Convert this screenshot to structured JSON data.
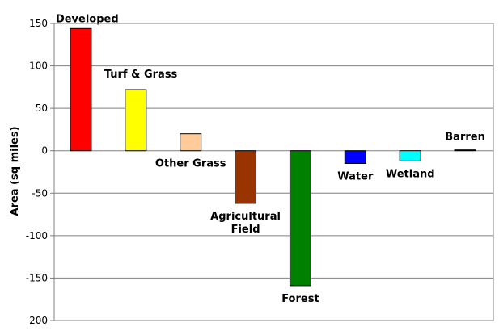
{
  "chart_data": {
    "type": "bar",
    "title": "",
    "xlabel": "",
    "ylabel": "Area (sq miles)",
    "ylim": [
      -200,
      150
    ],
    "yticks": [
      150,
      100,
      50,
      0,
      -50,
      -100,
      -150,
      -200
    ],
    "grid": true,
    "categories": [
      {
        "label": [
          "Developed"
        ],
        "value": 144,
        "color": "#ff0000",
        "label_pos": "above-left"
      },
      {
        "label": [
          "Turf & Grass"
        ],
        "value": 72,
        "color": "#ffff00",
        "label_pos": "above-right"
      },
      {
        "label": [
          "Other Grass"
        ],
        "value": 20,
        "color": "#ffcc99",
        "label_pos": "below"
      },
      {
        "label": [
          "Agricultural",
          "Field"
        ],
        "value": -62,
        "color": "#993300",
        "label_pos": "below"
      },
      {
        "label": [
          "Forest"
        ],
        "value": -159,
        "color": "#008000",
        "label_pos": "below"
      },
      {
        "label": [
          "Water"
        ],
        "value": -15,
        "color": "#0000ff",
        "label_pos": "below"
      },
      {
        "label": [
          "Wetland"
        ],
        "value": -12,
        "color": "#00ffff",
        "label_pos": "below"
      },
      {
        "label": [
          "Barren"
        ],
        "value": 1,
        "color": "#000000",
        "label_pos": "above"
      }
    ]
  }
}
